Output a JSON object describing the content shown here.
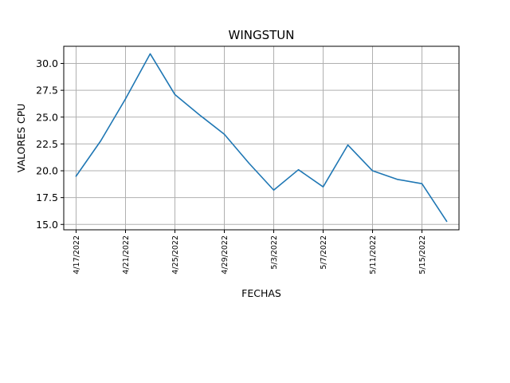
{
  "chart_data": {
    "type": "line",
    "title": "WINGSTUN",
    "xlabel": "FECHAS",
    "ylabel": "VALORES CPU",
    "grid": true,
    "line_color": "#1f77b4",
    "grid_color": "#b0b0b0",
    "x_range": [
      "4/16/2022",
      "5/18/2022"
    ],
    "ylim": [
      14.5,
      31.6
    ],
    "x_ticks": [
      "4/17/2022",
      "4/21/2022",
      "4/25/2022",
      "4/29/2022",
      "5/3/2022",
      "5/7/2022",
      "5/11/2022",
      "5/15/2022"
    ],
    "y_ticks": [
      "15.0",
      "17.5",
      "20.0",
      "22.5",
      "25.0",
      "27.5",
      "30.0"
    ],
    "series": [
      {
        "x": [
          "4/17/2022",
          "4/19/2022",
          "4/21/2022",
          "4/23/2022",
          "4/25/2022",
          "4/27/2022",
          "4/29/2022",
          "5/1/2022",
          "5/3/2022",
          "5/5/2022",
          "5/7/2022",
          "5/9/2022",
          "5/11/2022",
          "5/13/2022",
          "5/15/2022",
          "5/17/2022"
        ],
        "values": [
          19.5,
          22.8,
          26.7,
          30.9,
          27.1,
          25.2,
          23.4,
          20.7,
          18.2,
          20.1,
          18.5,
          22.4,
          20.0,
          19.2,
          18.8,
          15.3
        ]
      }
    ]
  }
}
